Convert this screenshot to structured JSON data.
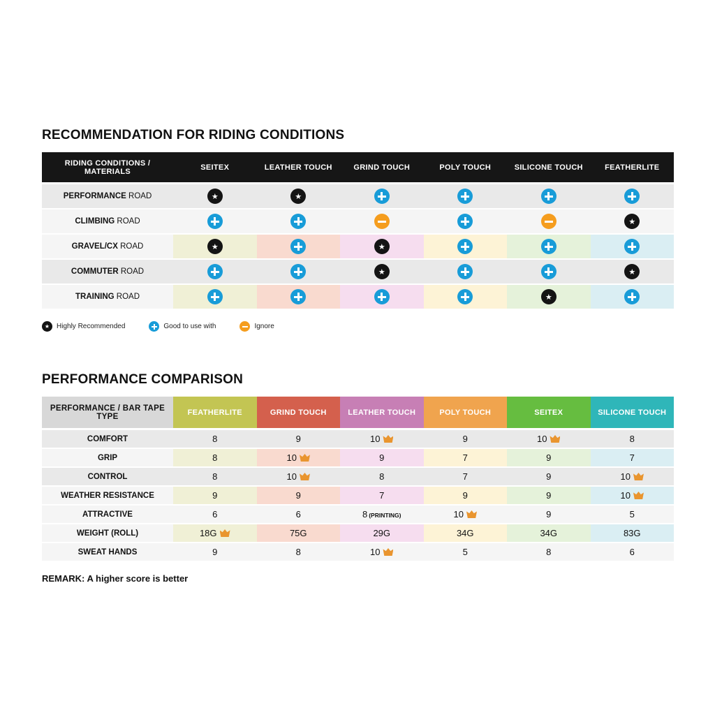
{
  "riding": {
    "title": "RECOMMENDATION FOR RIDING CONDITIONS",
    "corner": "RIDING CONDITIONS / MATERIALS",
    "columns": [
      {
        "label": "SEITEX",
        "tint": "#f0f0d6"
      },
      {
        "label": "LEATHER TOUCH",
        "tint": "#f9dacf"
      },
      {
        "label": "GRIND TOUCH",
        "tint": "#f6ddef"
      },
      {
        "label": "POLY TOUCH",
        "tint": "#fdf3d6"
      },
      {
        "label": "SILICONE TOUCH",
        "tint": "#e5f2da"
      },
      {
        "label": "FEATHERLITE",
        "tint": "#daeef3"
      }
    ],
    "rows": [
      {
        "label_bold": "PERFORMANCE",
        "label_rest": "ROAD",
        "icons": [
          "star",
          "star",
          "plus",
          "plus",
          "plus",
          "plus"
        ]
      },
      {
        "label_bold": "CLIMBING",
        "label_rest": "ROAD",
        "icons": [
          "plus",
          "plus",
          "ignore",
          "plus",
          "ignore",
          "star"
        ]
      },
      {
        "label_bold": "GRAVEL/CX",
        "label_rest": "ROAD",
        "icons": [
          "star",
          "plus",
          "star",
          "plus",
          "plus",
          "plus"
        ]
      },
      {
        "label_bold": "COMMUTER",
        "label_rest": "ROAD",
        "icons": [
          "plus",
          "plus",
          "star",
          "plus",
          "plus",
          "star"
        ]
      },
      {
        "label_bold": "TRAINING",
        "label_rest": "ROAD",
        "icons": [
          "plus",
          "plus",
          "plus",
          "plus",
          "star",
          "plus"
        ]
      }
    ],
    "legend": [
      {
        "icon": "star",
        "label": "Highly Recommended"
      },
      {
        "icon": "plus",
        "label": "Good to use with"
      },
      {
        "icon": "ignore",
        "label": "Ignore"
      }
    ],
    "icon_colors": {
      "star": "#141414",
      "plus": "#189cd8",
      "ignore": "#f59d1e"
    }
  },
  "performance": {
    "title": "PERFORMANCE COMPARISON",
    "corner": "PERFORMANCE / BAR TAPE TYPE",
    "columns": [
      {
        "label": "FEATHERLITE",
        "color": "#c3c553",
        "tint": "#f0f0d6"
      },
      {
        "label": "GRIND TOUCH",
        "color": "#d4604d",
        "tint": "#f9dacf"
      },
      {
        "label": "LEATHER TOUCH",
        "color": "#c77fb5",
        "tint": "#f6ddef"
      },
      {
        "label": "POLY TOUCH",
        "color": "#f0a44e",
        "tint": "#fdf3d6"
      },
      {
        "label": "SEITEX",
        "color": "#66bd40",
        "tint": "#e5f2da"
      },
      {
        "label": "SILICONE TOUCH",
        "color": "#2fb6b9",
        "tint": "#daeef3"
      }
    ],
    "rows": [
      {
        "label": "COMFORT",
        "values": [
          {
            "v": "8"
          },
          {
            "v": "9"
          },
          {
            "v": "10",
            "crown": true
          },
          {
            "v": "9"
          },
          {
            "v": "10",
            "crown": true
          },
          {
            "v": "8"
          }
        ]
      },
      {
        "label": "GRIP",
        "values": [
          {
            "v": "8"
          },
          {
            "v": "10",
            "crown": true
          },
          {
            "v": "9"
          },
          {
            "v": "7"
          },
          {
            "v": "9"
          },
          {
            "v": "7"
          }
        ]
      },
      {
        "label": "CONTROL",
        "values": [
          {
            "v": "8"
          },
          {
            "v": "10",
            "crown": true
          },
          {
            "v": "8"
          },
          {
            "v": "7"
          },
          {
            "v": "9"
          },
          {
            "v": "10",
            "crown": true
          }
        ]
      },
      {
        "label": "WEATHER RESISTANCE",
        "values": [
          {
            "v": "9"
          },
          {
            "v": "9"
          },
          {
            "v": "7"
          },
          {
            "v": "9"
          },
          {
            "v": "9"
          },
          {
            "v": "10",
            "crown": true
          }
        ]
      },
      {
        "label": "ATTRACTIVE",
        "values": [
          {
            "v": "6"
          },
          {
            "v": "6"
          },
          {
            "v": "8",
            "suffix": "(PRINTING)"
          },
          {
            "v": "10",
            "crown": true
          },
          {
            "v": "9"
          },
          {
            "v": "5"
          }
        ]
      },
      {
        "label": "WEIGHT (ROLL)",
        "values": [
          {
            "v": "18G",
            "crown": true
          },
          {
            "v": "75G"
          },
          {
            "v": "29G"
          },
          {
            "v": "34G"
          },
          {
            "v": "34G"
          },
          {
            "v": "83G"
          }
        ]
      },
      {
        "label": "SWEAT HANDS",
        "values": [
          {
            "v": "9"
          },
          {
            "v": "8"
          },
          {
            "v": "10",
            "crown": true
          },
          {
            "v": "5"
          },
          {
            "v": "8"
          },
          {
            "v": "6"
          }
        ]
      }
    ],
    "remark": "REMARK: A higher score is better"
  },
  "chart_data": [
    {
      "type": "table",
      "title": "RECOMMENDATION FOR RIDING CONDITIONS",
      "row_header": "RIDING CONDITIONS / MATERIALS",
      "columns": [
        "SEITEX",
        "LEATHER TOUCH",
        "GRIND TOUCH",
        "POLY TOUCH",
        "SILICONE TOUCH",
        "FEATHERLITE"
      ],
      "rows": [
        "PERFORMANCE ROAD",
        "CLIMBING ROAD",
        "GRAVEL/CX ROAD",
        "COMMUTER ROAD",
        "TRAINING ROAD"
      ],
      "values": [
        [
          "highly-recommended",
          "highly-recommended",
          "good-to-use-with",
          "good-to-use-with",
          "good-to-use-with",
          "good-to-use-with"
        ],
        [
          "good-to-use-with",
          "good-to-use-with",
          "ignore",
          "good-to-use-with",
          "ignore",
          "highly-recommended"
        ],
        [
          "highly-recommended",
          "good-to-use-with",
          "highly-recommended",
          "good-to-use-with",
          "good-to-use-with",
          "good-to-use-with"
        ],
        [
          "good-to-use-with",
          "good-to-use-with",
          "highly-recommended",
          "good-to-use-with",
          "good-to-use-with",
          "highly-recommended"
        ],
        [
          "good-to-use-with",
          "good-to-use-with",
          "good-to-use-with",
          "good-to-use-with",
          "highly-recommended",
          "good-to-use-with"
        ]
      ],
      "legend": [
        "Highly Recommended",
        "Good to use with",
        "Ignore"
      ]
    },
    {
      "type": "table",
      "title": "PERFORMANCE COMPARISON",
      "row_header": "PERFORMANCE / BAR TAPE TYPE",
      "columns": [
        "FEATHERLITE",
        "GRIND TOUCH",
        "LEATHER TOUCH",
        "POLY TOUCH",
        "SEITEX",
        "SILICONE TOUCH"
      ],
      "rows": [
        "COMFORT",
        "GRIP",
        "CONTROL",
        "WEATHER RESISTANCE",
        "ATTRACTIVE",
        "WEIGHT (ROLL)",
        "SWEAT HANDS"
      ],
      "values": [
        [
          8,
          9,
          10,
          9,
          10,
          8
        ],
        [
          8,
          10,
          9,
          7,
          9,
          7
        ],
        [
          8,
          10,
          8,
          7,
          9,
          10
        ],
        [
          9,
          9,
          7,
          9,
          9,
          10
        ],
        [
          6,
          6,
          8,
          10,
          9,
          5
        ],
        [
          "18G",
          "75G",
          "29G",
          "34G",
          "34G",
          "83G"
        ],
        [
          9,
          8,
          10,
          5,
          8,
          6
        ]
      ],
      "best_marked_with": "crown",
      "notes": [
        "ATTRACTIVE / LEATHER TOUCH = 8 (PRINTING)"
      ],
      "remark": "REMARK: A higher score is better"
    }
  ]
}
